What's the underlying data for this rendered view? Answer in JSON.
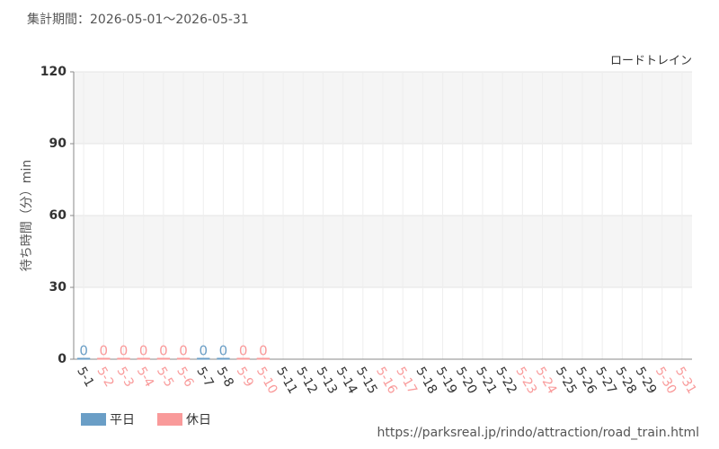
{
  "chart_data": {
    "type": "bar",
    "title": "集計期間：2026-05-01～2026-05-31",
    "subtitle": "ロードトレイン",
    "y_label": "待ち時間（分）min",
    "source": "https://parksreal.jp/rindo/attraction/road_train.html",
    "categories": [
      "5-1",
      "5-2",
      "5-3",
      "5-4",
      "5-5",
      "5-6",
      "5-7",
      "5-8",
      "5-9",
      "5-10",
      "5-11",
      "5-12",
      "5-13",
      "5-14",
      "5-15",
      "5-16",
      "5-17",
      "5-18",
      "5-19",
      "5-20",
      "5-21",
      "5-22",
      "5-23",
      "5-24",
      "5-25",
      "5-26",
      "5-27",
      "5-28",
      "5-29",
      "5-30",
      "5-31"
    ],
    "values": [
      0,
      0,
      0,
      0,
      0,
      0,
      0,
      0,
      0,
      0,
      null,
      null,
      null,
      null,
      null,
      null,
      null,
      null,
      null,
      null,
      null,
      null,
      null,
      null,
      null,
      null,
      null,
      null,
      null,
      null,
      null
    ],
    "colors": [
      "#6a9ec6",
      "#f99a9a",
      "#f99a9a",
      "#f99a9a",
      "#f99a9a",
      "#f99a9a",
      "#6a9ec6",
      "#6a9ec6",
      "#f99a9a",
      "#f99a9a",
      "#6a9ec6",
      "#6a9ec6",
      "#6a9ec6",
      "#6a9ec6",
      "#6a9ec6",
      "#f99a9a",
      "#f99a9a",
      "#6a9ec6",
      "#6a9ec6",
      "#6a9ec6",
      "#6a9ec6",
      "#6a9ec6",
      "#f99a9a",
      "#f99a9a",
      "#6a9ec6",
      "#6a9ec6",
      "#6a9ec6",
      "#6a9ec6",
      "#6a9ec6",
      "#f99a9a",
      "#f99a9a"
    ],
    "legend": [
      {
        "name": "平日",
        "color": "#6a9ec6"
      },
      {
        "name": "休日",
        "color": "#f99a9a"
      }
    ],
    "ylim": [
      0,
      120
    ],
    "yticks": [
      0,
      30,
      60,
      90,
      120
    ],
    "grid": true
  }
}
